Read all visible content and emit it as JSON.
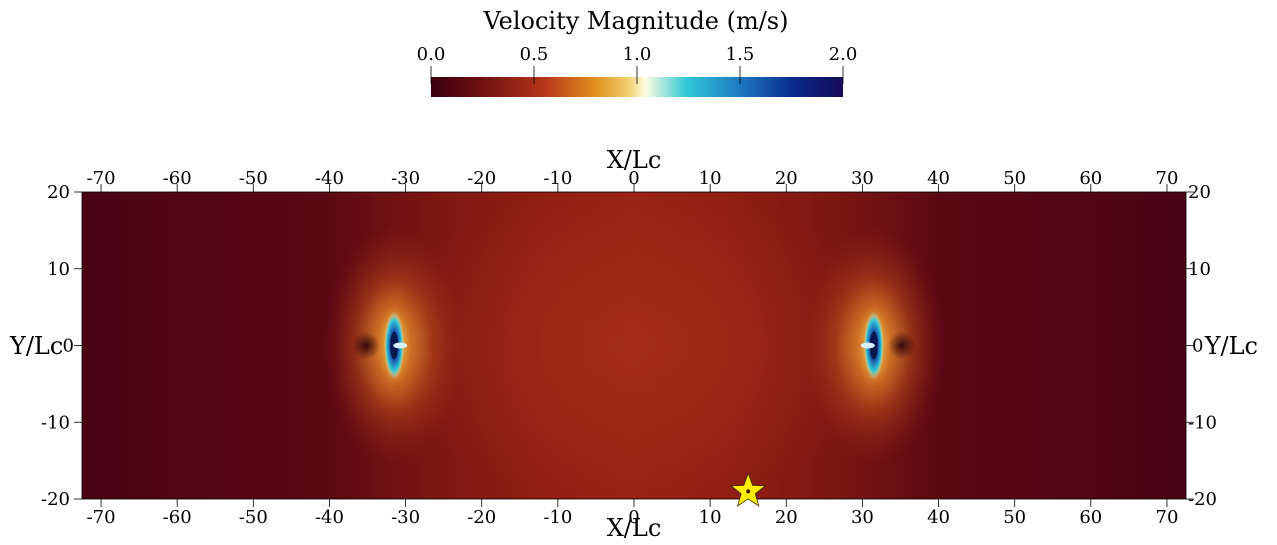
{
  "chart_data": {
    "type": "heatmap",
    "colorbar": {
      "title": "Velocity Magnitude (m/s)",
      "range": [
        0.0,
        2.0
      ],
      "ticks": [
        0.0,
        0.5,
        1.0,
        1.5,
        2.0
      ],
      "tick_labels": [
        "0.0",
        "0.5",
        "1.0",
        "1.5",
        "2.0"
      ],
      "colormap": [
        "#3a0010",
        "#6e0f10",
        "#b8381a",
        "#e0901e",
        "#f0d070",
        "#fffce0",
        "#30c8d8",
        "#1e78c0",
        "#0a2a8c",
        "#150a55"
      ]
    },
    "xlabel": "X/Lc",
    "ylabel": "Y/Lc",
    "xlim": [
      -72.5,
      72.5
    ],
    "ylim": [
      -20,
      20
    ],
    "x_ticks": [
      -70,
      -60,
      -50,
      -40,
      -30,
      -20,
      -10,
      0,
      10,
      20,
      30,
      40,
      50,
      60,
      70
    ],
    "x_tick_labels": [
      "-70",
      "-60",
      "-50",
      "-40",
      "-30",
      "-20",
      "-10",
      "0",
      "10",
      "20",
      "30",
      "40",
      "50",
      "60",
      "70"
    ],
    "y_ticks": [
      20,
      10,
      0,
      -10,
      -20
    ],
    "y_tick_labels": [
      "20",
      "10",
      "0",
      "-10",
      "-20"
    ],
    "field": {
      "background_value": 0.05,
      "sources": [
        {
          "x": -31.5,
          "y": 0,
          "peak": 2.0
        },
        {
          "x": 31.5,
          "y": 0,
          "peak": 2.0
        }
      ]
    },
    "marker": {
      "shape": "star",
      "x": 15,
      "y": -19,
      "color": "#ffee00"
    }
  }
}
